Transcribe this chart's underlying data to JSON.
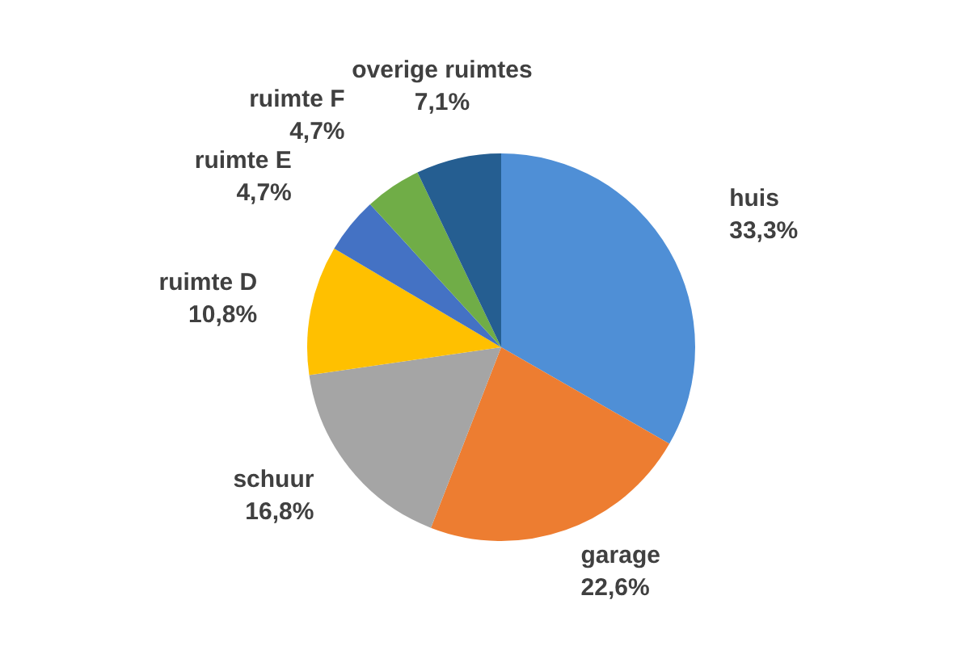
{
  "chart_data": {
    "type": "pie",
    "categories": [
      "huis",
      "garage",
      "schuur",
      "ruimte D",
      "ruimte E",
      "ruimte F",
      "overige ruimtes"
    ],
    "values": [
      33.3,
      22.6,
      16.8,
      10.8,
      4.7,
      4.7,
      7.1
    ],
    "colors": [
      "#4f8fd6",
      "#ed7d31",
      "#a5a5a5",
      "#ffc000",
      "#4472c4",
      "#70ad47",
      "#255e91"
    ],
    "value_labels": [
      "33,3%",
      "22,6%",
      "16,8%",
      "10,8%",
      "4,7%",
      "4,7%",
      "7,1%"
    ],
    "legend": false
  }
}
